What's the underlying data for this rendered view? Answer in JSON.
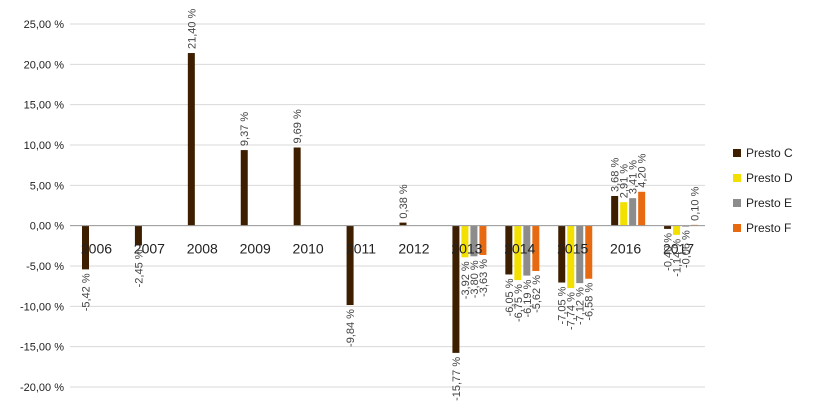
{
  "chart_data": {
    "type": "bar",
    "categories": [
      "2006",
      "2007",
      "2008",
      "2009",
      "2010",
      "2011",
      "2012",
      "2013",
      "2014",
      "2015",
      "2016",
      "2017"
    ],
    "series": [
      {
        "name": "Presto C",
        "color": "#3d1f00",
        "values": [
          -5.42,
          -2.45,
          21.4,
          9.37,
          9.69,
          -9.84,
          0.38,
          -15.77,
          -6.05,
          -7.05,
          3.68,
          -0.4
        ],
        "labels": [
          "-5,42 %",
          "-2,45 %",
          "21,40 %",
          "9,37 %",
          "9,69 %",
          "-9,84 %",
          "0,38 %",
          "-15,77 %",
          "-6,05 %",
          "-7,05 %",
          "3,68 %",
          "-0,40 %"
        ]
      },
      {
        "name": "Presto D",
        "color": "#f4e000",
        "values": [
          null,
          null,
          null,
          null,
          null,
          null,
          null,
          -3.92,
          -6.75,
          -7.74,
          2.91,
          -1.14
        ],
        "labels": [
          "",
          "",
          "",
          "",
          "",
          "",
          "",
          "-3,92 %",
          "-6,75 %",
          "-7,74 %",
          "2,91 %",
          "-1,14 %"
        ]
      },
      {
        "name": "Presto E",
        "color": "#8c8c8c",
        "values": [
          null,
          null,
          null,
          null,
          null,
          null,
          null,
          -3.8,
          -6.19,
          -7.12,
          3.41,
          -0.06
        ],
        "labels": [
          "",
          "",
          "",
          "",
          "",
          "",
          "",
          "-3,80 %",
          "-6,19 %",
          "-7,12 %",
          "3,41 %",
          "-0,06 %"
        ]
      },
      {
        "name": "Presto F",
        "color": "#e86a10",
        "values": [
          null,
          null,
          null,
          null,
          null,
          null,
          null,
          -3.63,
          -5.62,
          -6.58,
          4.2,
          0.1
        ],
        "labels": [
          "",
          "",
          "",
          "",
          "",
          "",
          "",
          "-3,63 %",
          "-5,62 %",
          "-6,58 %",
          "4,20 %",
          "0,10 %"
        ]
      }
    ],
    "yticks": [
      25,
      20,
      15,
      10,
      5,
      0,
      -5,
      -10,
      -15,
      -20
    ],
    "ytick_labels": [
      "25,00 %",
      "20,00 %",
      "15,00 %",
      "10,00 %",
      "5,00 %",
      "0,00 %",
      "-5,00 %",
      "-10,00 %",
      "-15,00 %",
      "-20,00 %"
    ],
    "ylim": [
      -20,
      25
    ],
    "grid": true,
    "legend_position": "right",
    "title": "",
    "xlabel": "",
    "ylabel": ""
  }
}
